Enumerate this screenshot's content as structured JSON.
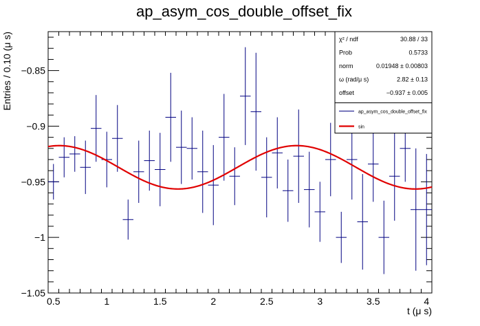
{
  "chart_data": {
    "type": "scatter",
    "title": "ap_asym_cos_double_offset_fix",
    "xlabel": "t (μ s)",
    "ylabel": "Entries / 0.10 (μ s)",
    "xlim": [
      0.45,
      4.05
    ],
    "ylim": [
      -1.05,
      -0.815
    ],
    "x_ticks": [
      "0.5",
      "1",
      "1.5",
      "2",
      "2.5",
      "3",
      "3.5",
      "4"
    ],
    "y_ticks": [
      "−1.05",
      "−1",
      "−0.95",
      "−0.9",
      "−0.85"
    ],
    "series": [
      {
        "name": "ap_asym_cos_double_offset_fix",
        "color": "#000080",
        "bin_half_width": 0.05,
        "points": [
          {
            "x": 0.5,
            "y": -0.95,
            "err": 0.016
          },
          {
            "x": 0.6,
            "y": -0.928,
            "err": 0.018
          },
          {
            "x": 0.7,
            "y": -0.925,
            "err": 0.016
          },
          {
            "x": 0.8,
            "y": -0.937,
            "err": 0.024
          },
          {
            "x": 0.9,
            "y": -0.902,
            "err": 0.03
          },
          {
            "x": 1.0,
            "y": -0.93,
            "err": 0.025
          },
          {
            "x": 1.1,
            "y": -0.911,
            "err": 0.03
          },
          {
            "x": 1.2,
            "y": -0.984,
            "err": 0.018
          },
          {
            "x": 1.3,
            "y": -0.941,
            "err": 0.028
          },
          {
            "x": 1.4,
            "y": -0.931,
            "err": 0.027
          },
          {
            "x": 1.5,
            "y": -0.939,
            "err": 0.033
          },
          {
            "x": 1.6,
            "y": -0.892,
            "err": 0.04
          },
          {
            "x": 1.7,
            "y": -0.919,
            "err": 0.033
          },
          {
            "x": 1.8,
            "y": -0.92,
            "err": 0.028
          },
          {
            "x": 1.9,
            "y": -0.941,
            "err": 0.037
          },
          {
            "x": 2.0,
            "y": -0.953,
            "err": 0.036
          },
          {
            "x": 2.1,
            "y": -0.91,
            "err": 0.039
          },
          {
            "x": 2.2,
            "y": -0.945,
            "err": 0.026
          },
          {
            "x": 2.3,
            "y": -0.873,
            "err": 0.044
          },
          {
            "x": 2.4,
            "y": -0.887,
            "err": 0.053
          },
          {
            "x": 2.5,
            "y": -0.946,
            "err": 0.036
          },
          {
            "x": 2.6,
            "y": -0.924,
            "err": 0.032
          },
          {
            "x": 2.7,
            "y": -0.958,
            "err": 0.028
          },
          {
            "x": 2.8,
            "y": -0.927,
            "err": 0.042
          },
          {
            "x": 2.9,
            "y": -0.957,
            "err": 0.034
          },
          {
            "x": 3.0,
            "y": -0.977,
            "err": 0.027
          },
          {
            "x": 3.1,
            "y": -0.93,
            "err": 0.033
          },
          {
            "x": 3.2,
            "y": -1.0,
            "err": 0.023
          },
          {
            "x": 3.3,
            "y": -0.93,
            "err": 0.036
          },
          {
            "x": 3.4,
            "y": -0.986,
            "err": 0.043
          },
          {
            "x": 3.5,
            "y": -0.934,
            "err": 0.034
          },
          {
            "x": 3.6,
            "y": -1.0,
            "err": 0.033
          },
          {
            "x": 3.7,
            "y": -0.945,
            "err": 0.04
          },
          {
            "x": 3.8,
            "y": -0.92,
            "err": 0.03
          },
          {
            "x": 3.9,
            "y": -0.975,
            "err": 0.055
          },
          {
            "x": 4.0,
            "y": -0.975,
            "err": 0.05
          }
        ]
      },
      {
        "name": "sin",
        "type": "line",
        "color": "#e00000",
        "function": {
          "offset": -0.937,
          "amplitude": 0.0195,
          "omega": 2.82,
          "phase": -6.2745
        },
        "x_range": [
          0.45,
          4.05
        ]
      }
    ],
    "stats": [
      {
        "label": "χ² / ndf",
        "value": "30.88 / 33"
      },
      {
        "label": "Prob",
        "value": "0.5733"
      },
      {
        "label": "norm",
        "value": "0.01948 ± 0.00803"
      },
      {
        "label": "ω (rad/μ s)",
        "value": "2.82 ± 0.13"
      },
      {
        "label": "offset",
        "value": "−0.937 ± 0.005"
      }
    ],
    "legend": [
      {
        "label": "ap_asym_cos_double_offset_fix",
        "color": "#000080",
        "style": "errorbar"
      },
      {
        "label": "sin",
        "color": "#e00000",
        "style": "line"
      }
    ],
    "grid": false,
    "legend_position": "top-right"
  }
}
